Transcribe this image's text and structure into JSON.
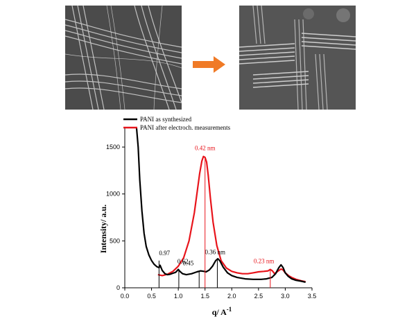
{
  "figure": {
    "images": [
      {
        "name": "sem-image-before",
        "description": "SEM micrograph of PANI fiber bundles as synthesized"
      },
      {
        "name": "sem-image-after",
        "description": "SEM micrograph of PANI fiber bundles after electrochemical measurements"
      }
    ],
    "arrow_color": "#f07a26"
  },
  "chart_data": {
    "type": "line",
    "title": "",
    "xlabel": "q/ A",
    "xlabel_sup": "-1",
    "ylabel": "Intensity/ a.u.",
    "xlim": [
      0.0,
      3.5
    ],
    "ylim": [
      0,
      1700
    ],
    "xticks": [
      "0.0",
      "0.5",
      "1.0",
      "1.5",
      "2.0",
      "2.5",
      "3.0",
      "3.5"
    ],
    "yticks": [
      "0",
      "500",
      "1000",
      "1500"
    ],
    "legend_position": "top-left",
    "series": [
      {
        "name": "PANI as synthesized",
        "color": "#000000",
        "x": [
          0.22,
          0.25,
          0.28,
          0.32,
          0.36,
          0.4,
          0.45,
          0.5,
          0.55,
          0.6,
          0.64,
          0.66,
          0.7,
          0.75,
          0.8,
          0.85,
          0.9,
          0.95,
          1.0,
          1.03,
          1.08,
          1.15,
          1.25,
          1.35,
          1.42,
          1.48,
          1.52,
          1.58,
          1.64,
          1.7,
          1.74,
          1.78,
          1.84,
          1.92,
          2.0,
          2.1,
          2.25,
          2.4,
          2.55,
          2.65,
          2.75,
          2.82,
          2.88,
          2.92,
          2.96,
          3.0,
          3.05,
          3.12,
          3.2,
          3.3,
          3.38
        ],
        "y": [
          1700,
          1500,
          1150,
          820,
          580,
          440,
          350,
          290,
          250,
          225,
          215,
          240,
          185,
          150,
          140,
          145,
          155,
          165,
          195,
          175,
          150,
          140,
          150,
          170,
          180,
          175,
          170,
          190,
          230,
          290,
          310,
          285,
          220,
          160,
          130,
          110,
          95,
          90,
          90,
          95,
          110,
          150,
          215,
          245,
          215,
          160,
          125,
          95,
          80,
          70,
          60
        ]
      },
      {
        "name": "PANI after electroch. measurements",
        "color": "#e8141b",
        "x": [
          0.62,
          0.7,
          0.8,
          0.9,
          1.0,
          1.1,
          1.2,
          1.3,
          1.36,
          1.4,
          1.44,
          1.47,
          1.5,
          1.53,
          1.56,
          1.6,
          1.65,
          1.72,
          1.8,
          1.9,
          2.0,
          2.1,
          2.2,
          2.3,
          2.4,
          2.5,
          2.6,
          2.68,
          2.72,
          2.76,
          2.8,
          2.86,
          2.92,
          2.96,
          3.0,
          3.06,
          3.12,
          3.2,
          3.3,
          3.38
        ],
        "y": [
          140,
          130,
          145,
          175,
          230,
          320,
          500,
          800,
          1050,
          1220,
          1350,
          1400,
          1390,
          1340,
          1200,
          960,
          700,
          450,
          290,
          210,
          175,
          160,
          150,
          150,
          160,
          170,
          175,
          180,
          195,
          180,
          150,
          175,
          200,
          190,
          160,
          130,
          110,
          90,
          75,
          65
        ]
      }
    ],
    "annotations": [
      {
        "text": "0.97",
        "x": 0.64,
        "color": "#000000",
        "line_top": 290
      },
      {
        "text": "0.62",
        "x": 1.01,
        "color": "#000000",
        "line_top": 200
      },
      {
        "text": "0.45",
        "x": 1.39,
        "color": "#000000",
        "line_top": 180
      },
      {
        "text": "0.36 nm",
        "x": 1.73,
        "color": "#000000",
        "line_top": 300
      },
      {
        "text": "0.42 nm",
        "x": 1.5,
        "color": "#e8141b",
        "line_top": 1380
      },
      {
        "text": "0.23 nm",
        "x": 2.72,
        "color": "#e8141b",
        "line_top": 190
      }
    ]
  }
}
